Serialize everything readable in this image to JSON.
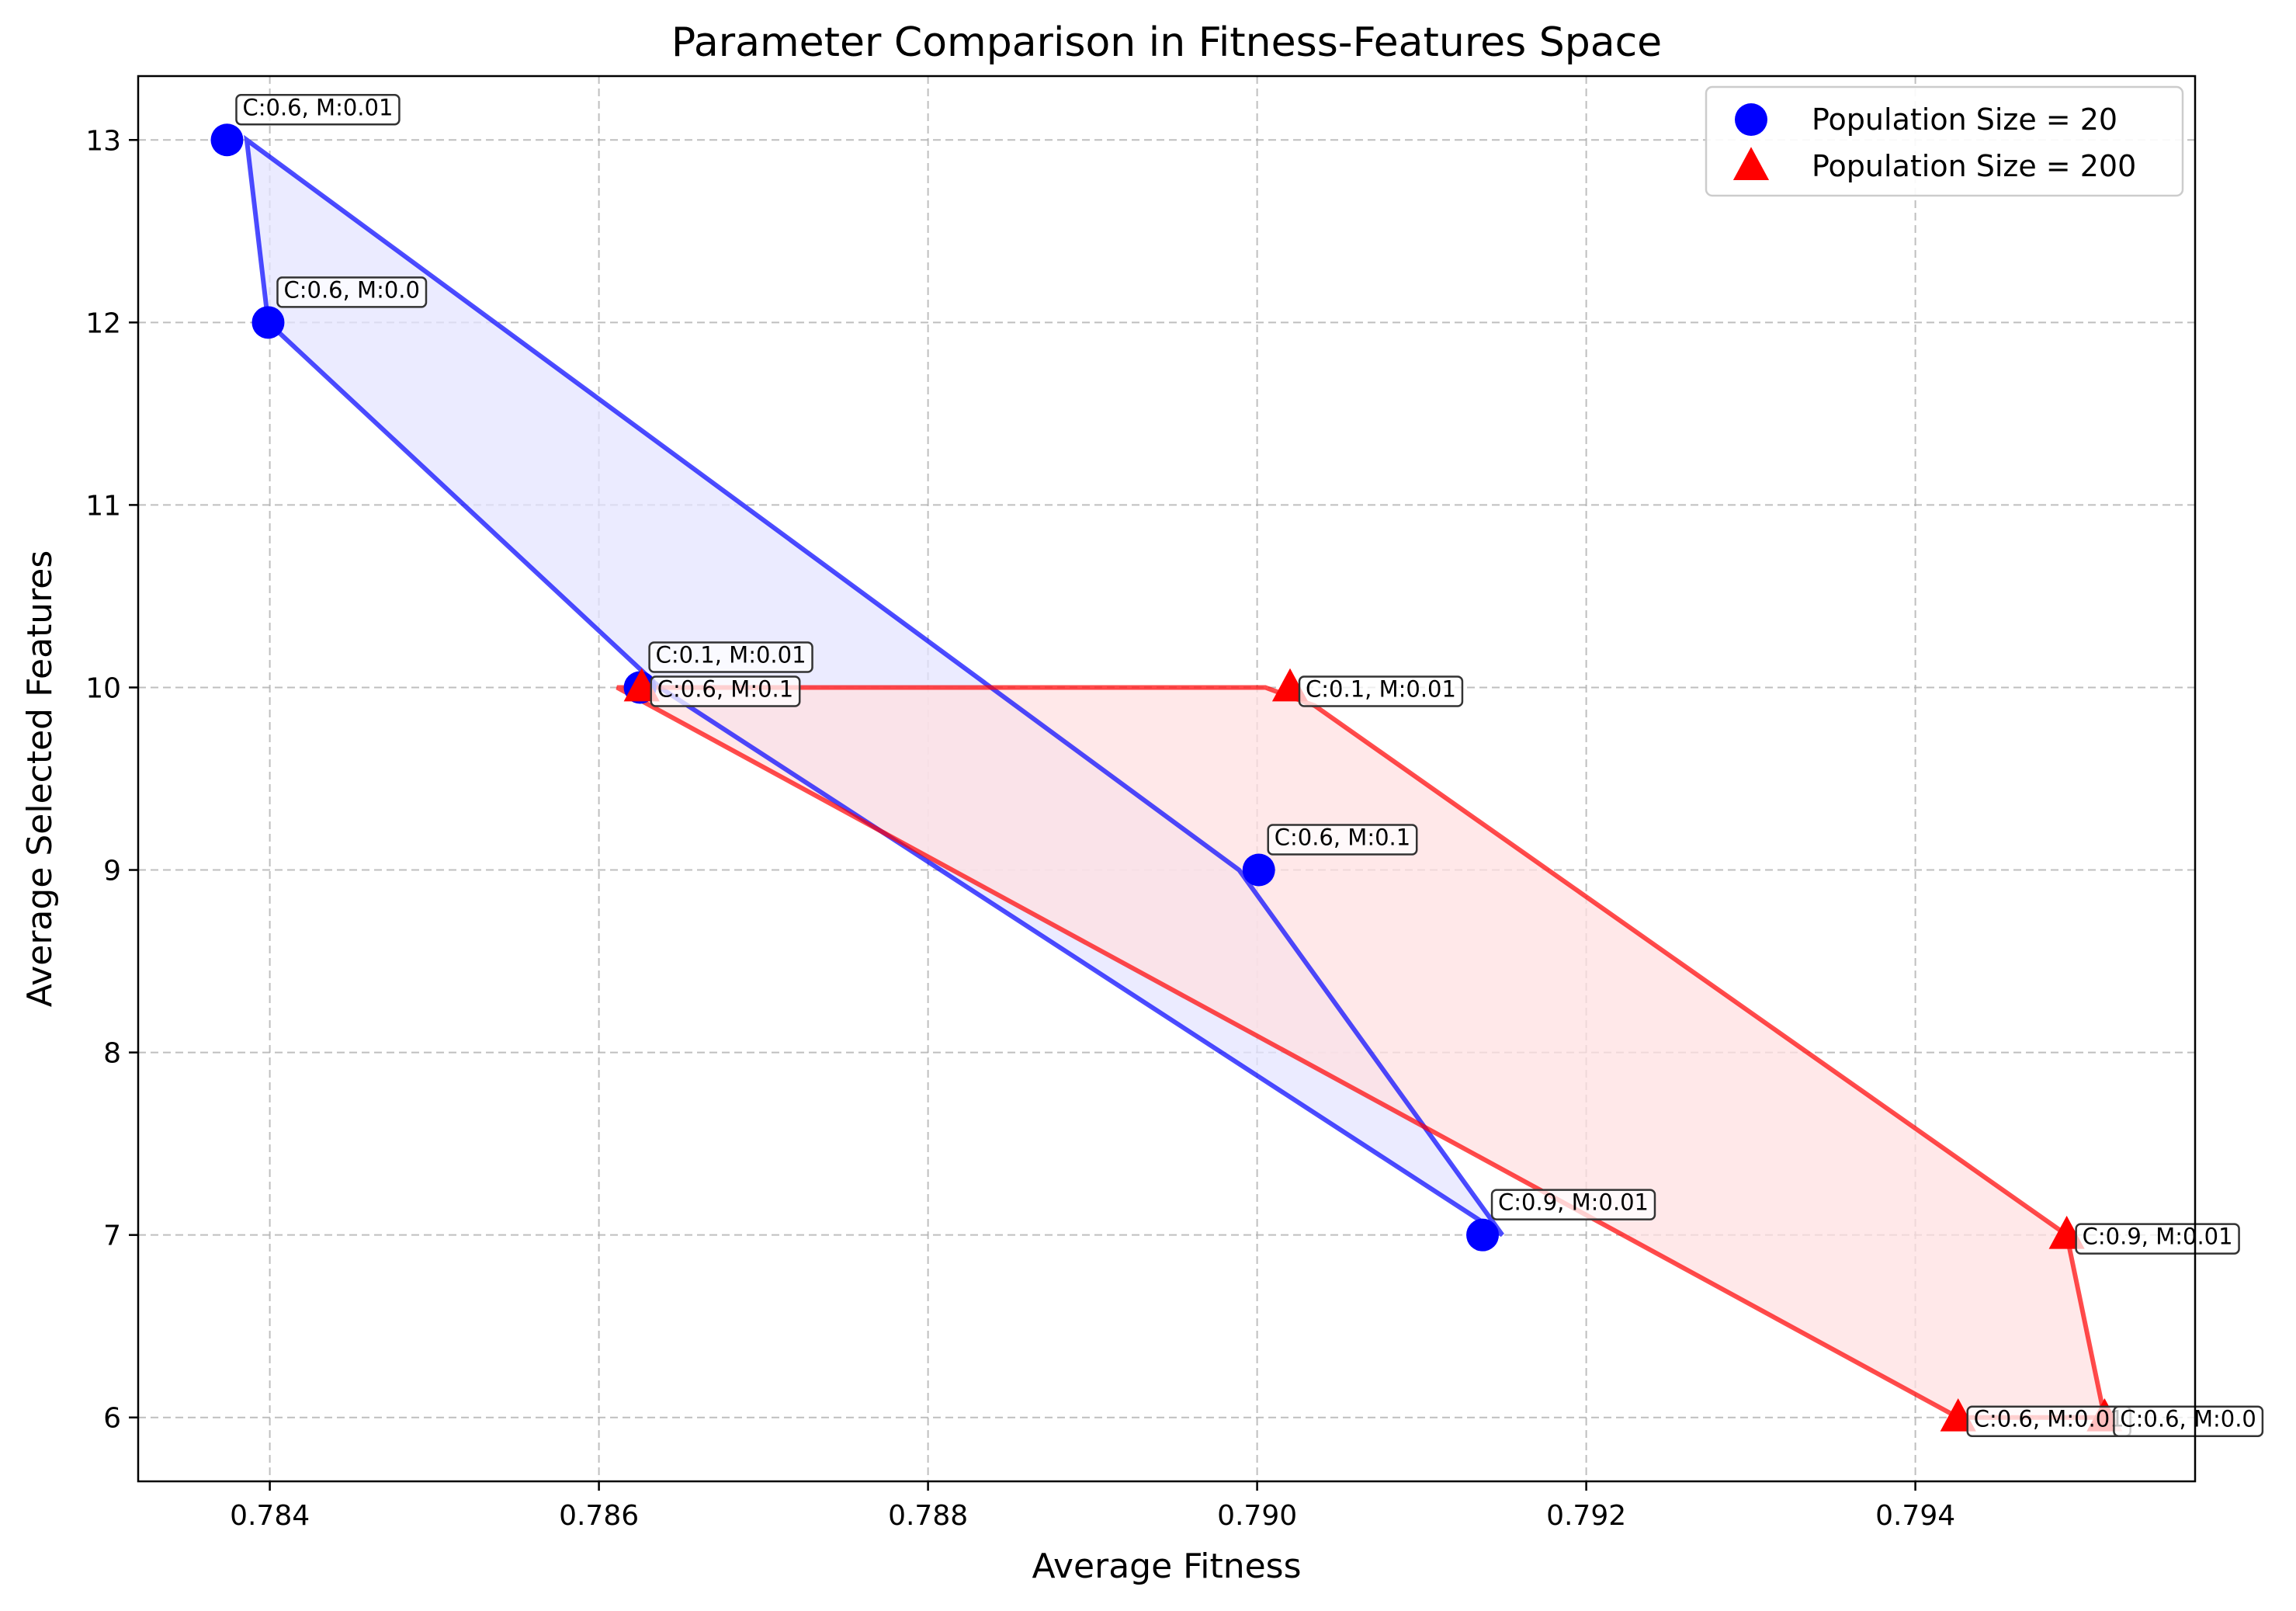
{
  "chart_data": {
    "type": "scatter",
    "title": "Parameter Comparison in Fitness-Features Space",
    "xlabel": "Average Fitness",
    "ylabel": "Average Selected Features",
    "xlim": [
      0.7832,
      0.7957
    ],
    "ylim": [
      5.65,
      13.35
    ],
    "xticks": [
      0.784,
      0.786,
      0.788,
      0.79,
      0.792,
      0.794
    ],
    "xtick_labels": [
      "0.784",
      "0.786",
      "0.788",
      "0.790",
      "0.792",
      "0.794"
    ],
    "yticks": [
      6,
      7,
      8,
      9,
      10,
      11,
      12,
      13
    ],
    "ytick_labels": [
      "6",
      "7",
      "8",
      "9",
      "10",
      "11",
      "12",
      "13"
    ],
    "grid": true,
    "legend_position": "top-right",
    "series": [
      {
        "name": "Population Size = 20",
        "marker": "circle",
        "color": "#0000ff",
        "hull_color": "#0000ff",
        "fill_color": "#e4e4ff",
        "points": [
          {
            "x": 0.78374,
            "y": 13,
            "label": "C:0.6, M:0.01"
          },
          {
            "x": 0.78399,
            "y": 12,
            "label": "C:0.6, M:0.0"
          },
          {
            "x": 0.78625,
            "y": 10,
            "label": "C:0.1, M:0.01"
          },
          {
            "x": 0.79001,
            "y": 9,
            "label": "C:0.6, M:0.1"
          },
          {
            "x": 0.79137,
            "y": 7,
            "label": "C:0.9, M:0.01"
          }
        ],
        "hull": [
          [
            0.78386,
            13.0
          ],
          [
            0.78399,
            12.0
          ],
          [
            0.78637,
            10.0
          ],
          [
            0.79149,
            7.0
          ],
          [
            0.78989,
            9.0
          ]
        ]
      },
      {
        "name": "Population Size = 200",
        "marker": "triangle",
        "color": "#ff0000",
        "hull_color": "#ff0000",
        "fill_color": "#ffe0e2",
        "points": [
          {
            "x": 0.78626,
            "y": 10,
            "label": "C:0.6, M:0.1"
          },
          {
            "x": 0.7902,
            "y": 10,
            "label": "C:0.1, M:0.01"
          },
          {
            "x": 0.79492,
            "y": 7,
            "label": "C:0.9, M:0.01"
          },
          {
            "x": 0.79426,
            "y": 6,
            "label": "C:0.6, M:0.01"
          },
          {
            "x": 0.79515,
            "y": 6,
            "label": "C:0.6, M:0.0"
          }
        ],
        "hull": [
          [
            0.78611,
            10.0
          ],
          [
            0.79005,
            10.0
          ],
          [
            0.79035,
            9.9
          ],
          [
            0.79492,
            7.0
          ],
          [
            0.79515,
            6.0
          ],
          [
            0.79426,
            6.0
          ]
        ]
      }
    ]
  }
}
